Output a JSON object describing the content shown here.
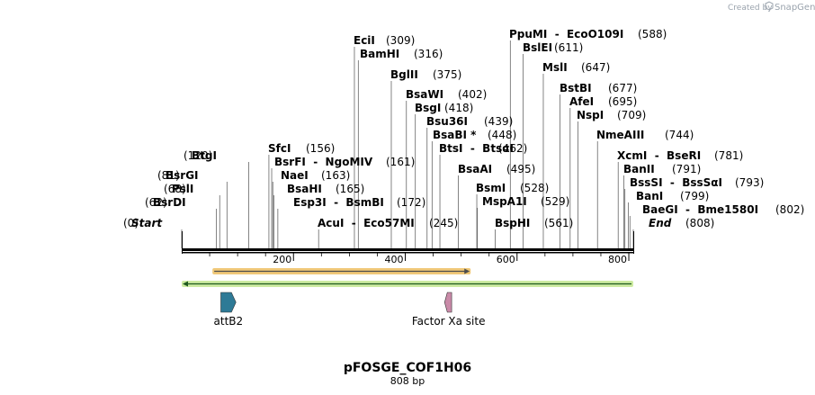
{
  "credit": {
    "prefix": "Created by",
    "brand": "SnapGene"
  },
  "plasmid": {
    "name": "pFOSGE_COF1H06",
    "length_label": "808 bp"
  },
  "sequence_length": 808,
  "ruler_ticks": [
    {
      "pos": 200,
      "label": "200"
    },
    {
      "pos": 400,
      "label": "400"
    },
    {
      "pos": 600,
      "label": "600"
    },
    {
      "pos": 800,
      "label": "800"
    }
  ],
  "sites": [
    {
      "name": "EciI",
      "coord": "(309)",
      "pos": 309,
      "side": "right"
    },
    {
      "name": "BamHI",
      "coord": "(316)",
      "pos": 316,
      "side": "right"
    },
    {
      "name": "BglII",
      "coord": "(375)",
      "pos": 375,
      "side": "right"
    },
    {
      "name": "BsaWI",
      "coord": "(402)",
      "pos": 402,
      "side": "right"
    },
    {
      "name": "BsgI",
      "coord": "(418)",
      "pos": 418,
      "side": "right"
    },
    {
      "name": "Bsu36I",
      "coord": "(439)",
      "pos": 439,
      "side": "right"
    },
    {
      "name": "BsaBI *",
      "coord": "(448)",
      "pos": 448,
      "side": "right"
    },
    {
      "name": "BtsI  -  BtsαI",
      "coord": "(462)",
      "pos": 462,
      "side": "right"
    },
    {
      "name": "BsaAI",
      "coord": "(495)",
      "pos": 495,
      "side": "right"
    },
    {
      "name": "BsmI",
      "coord": "(528)",
      "pos": 528,
      "side": "right"
    },
    {
      "name": "MspA1I",
      "coord": "(529)",
      "pos": 529,
      "side": "right"
    },
    {
      "name": "BspHI",
      "coord": "(561)",
      "pos": 561,
      "side": "right"
    },
    {
      "name": "PpuMI  -  EcoO109I",
      "coord": "(588)",
      "pos": 588,
      "side": "right"
    },
    {
      "name": "BslEI",
      "coord": "(611)",
      "pos": 611,
      "side": "right"
    },
    {
      "name": "MslI",
      "coord": "(647)",
      "pos": 647,
      "side": "right"
    },
    {
      "name": "BstBI",
      "coord": "(677)",
      "pos": 677,
      "side": "right"
    },
    {
      "name": "AfeI",
      "coord": "(695)",
      "pos": 695,
      "side": "right"
    },
    {
      "name": "NspI",
      "coord": "(709)",
      "pos": 709,
      "side": "right"
    },
    {
      "name": "NmeAIII",
      "coord": "(744)",
      "pos": 744,
      "side": "right"
    },
    {
      "name": "XcmI  -  BseRI",
      "coord": "(781)",
      "pos": 781,
      "side": "right"
    },
    {
      "name": "BanII",
      "coord": "(791)",
      "pos": 791,
      "side": "right"
    },
    {
      "name": "BssSI  -  BssSαI",
      "coord": "(793)",
      "pos": 793,
      "side": "right"
    },
    {
      "name": "BanI",
      "coord": "(799)",
      "pos": 799,
      "side": "right"
    },
    {
      "name": "BaeGI  -  Bme1580I",
      "coord": "(802)",
      "pos": 802,
      "side": "right"
    },
    {
      "name": "End",
      "coord": "(808)",
      "pos": 808,
      "side": "right",
      "italic": true
    },
    {
      "name": "SfcI",
      "coord": "(156)",
      "pos": 156,
      "side": "right"
    },
    {
      "name": "BsrFI  -  NgoMIV",
      "coord": "(161)",
      "pos": 161,
      "side": "right"
    },
    {
      "name": "NaeI",
      "coord": "(163)",
      "pos": 163,
      "side": "right"
    },
    {
      "name": "BsaHI",
      "coord": "(165)",
      "pos": 165,
      "side": "right"
    },
    {
      "name": "Esp3I  -  BsmBI",
      "coord": "(172)",
      "pos": 172,
      "side": "right"
    },
    {
      "name": "AcuI  -  Eco57MI",
      "coord": "(245)",
      "pos": 245,
      "side": "right"
    },
    {
      "name": "BtgI",
      "coord": "(120)",
      "pos": 120,
      "side": "left"
    },
    {
      "name": "BsrGI",
      "coord": "(81)",
      "pos": 81,
      "side": "left"
    },
    {
      "name": "PslI",
      "coord": "(68)",
      "pos": 68,
      "side": "left"
    },
    {
      "name": "BsrDI",
      "coord": "(62)",
      "pos": 62,
      "side": "left"
    },
    {
      "name": "Start",
      "coord": "(0)",
      "pos": 0,
      "side": "left",
      "italic": true
    }
  ],
  "features": [
    {
      "name": "attB2",
      "start": 70,
      "end": 97,
      "direction": "forward",
      "color": "#2e7a96"
    },
    {
      "name": "Factor Xa site",
      "start": 472,
      "end": 483,
      "direction": "reverse",
      "color": "#c98aa8"
    }
  ],
  "orf_bar": {
    "start": 55,
    "end": 517,
    "direction": "forward",
    "color": "#f0c878",
    "line": "#4d4d4d"
  },
  "green_bar": {
    "start": 0,
    "end": 808,
    "direction": "reverse",
    "color": "#cdeba1",
    "line": "#1f5a1f"
  },
  "colors": {
    "backbone": "#000000"
  }
}
